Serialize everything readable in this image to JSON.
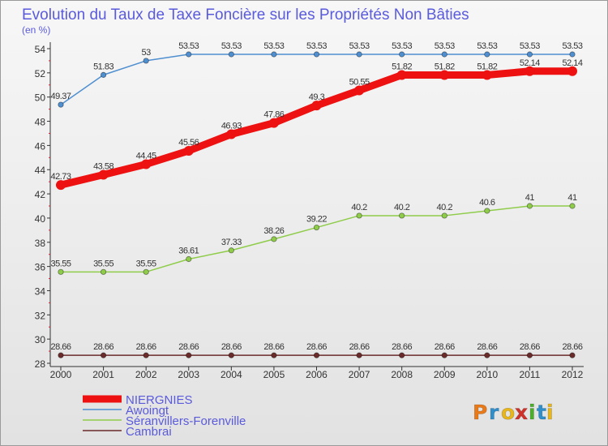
{
  "chart_data": {
    "type": "line",
    "title": "Evolution du Taux de Taxe Foncière sur les Propriétés Non Bâties",
    "subtitle": "(en %)",
    "x": [
      "2000",
      "2001",
      "2002",
      "2003",
      "2004",
      "2005",
      "2006",
      "2007",
      "2008",
      "2009",
      "2010",
      "2011",
      "2012"
    ],
    "ylim": [
      28,
      54
    ],
    "yticks": [
      28,
      30,
      32,
      34,
      36,
      38,
      40,
      42,
      44,
      46,
      48,
      50,
      52,
      54
    ],
    "grid": false,
    "legend_position": "bottom-left",
    "series": [
      {
        "name": "Awoingt",
        "color": "#4f8fd0",
        "values": [
          49.37,
          51.83,
          53,
          53.53,
          53.53,
          53.53,
          53.53,
          53.53,
          53.53,
          53.53,
          53.53,
          53.53,
          53.53
        ],
        "labels": [
          "49.37",
          "51.83",
          "53",
          "53.53",
          "53.53",
          "53.53",
          "53.53",
          "53.53",
          "53.53",
          "53.53",
          "53.53",
          "53.53",
          "53.53"
        ]
      },
      {
        "name": "NIERGNIES",
        "color": "#ee1111",
        "values": [
          42.73,
          43.58,
          44.45,
          45.56,
          46.93,
          47.86,
          49.3,
          50.55,
          51.82,
          51.82,
          51.82,
          52.14,
          52.14
        ],
        "labels": [
          "42.73",
          "43.58",
          "44.45",
          "45.56",
          "46.93",
          "47.86",
          "49.3",
          "50.55",
          "51.82",
          "51.82",
          "51.82",
          "52.14",
          "52.14"
        ]
      },
      {
        "name": "Séranvillers-Forenville",
        "color": "#8fcc4a",
        "values": [
          35.55,
          35.55,
          35.55,
          36.61,
          37.33,
          38.26,
          39.22,
          40.2,
          40.2,
          40.2,
          40.6,
          41,
          41
        ],
        "labels": [
          "35.55",
          "35.55",
          "35.55",
          "36.61",
          "37.33",
          "38.26",
          "39.22",
          "40.2",
          "40.2",
          "40.2",
          "40.6",
          "41",
          "41"
        ]
      },
      {
        "name": "Cambrai",
        "color": "#6b2b2b",
        "values": [
          28.66,
          28.66,
          28.66,
          28.66,
          28.66,
          28.66,
          28.66,
          28.66,
          28.66,
          28.66,
          28.66,
          28.66,
          28.66
        ],
        "labels": [
          "28.66",
          "28.66",
          "28.66",
          "28.66",
          "28.66",
          "28.66",
          "28.66",
          "28.66",
          "28.66",
          "28.66",
          "28.66",
          "28.66",
          "28.66"
        ]
      }
    ],
    "legend": [
      "NIERGNIES",
      "Awoingt",
      "Séranvillers-Forenville",
      "Cambrai"
    ]
  },
  "logo": {
    "text": "Proxiti",
    "icon": "proxiti-logo"
  },
  "colors": {
    "title": "#5a5adc",
    "legend_text": "#5a5adc",
    "axis_text": "#333333"
  }
}
